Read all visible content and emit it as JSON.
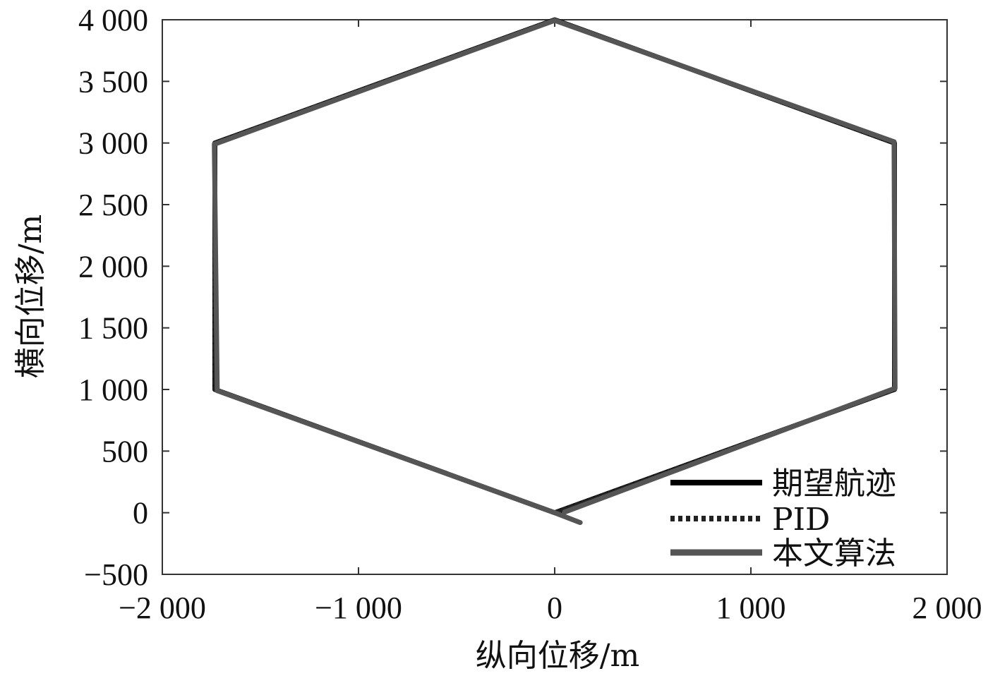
{
  "chart_data": {
    "type": "line",
    "xlabel": "纵向位移/m",
    "ylabel": "横向位移/m",
    "xlim": [
      -2000,
      2000
    ],
    "ylim": [
      -500,
      4000
    ],
    "xticks": [
      -2000,
      -1000,
      0,
      1000,
      2000
    ],
    "xtick_labels": [
      "−2 000",
      "−1 000",
      "0",
      "1 000",
      "2 000"
    ],
    "yticks": [
      -500,
      0,
      500,
      1000,
      1500,
      2000,
      2500,
      3000,
      3500,
      4000
    ],
    "ytick_labels": [
      "−500",
      "0",
      "500",
      "1 000",
      "1 500",
      "2 000",
      "2 500",
      "3 000",
      "3 500",
      "4 000"
    ],
    "grid": false,
    "legend_position": "bottom-right",
    "series": [
      {
        "name": "期望航迹",
        "style": "solid",
        "color": "#000000",
        "x": [
          0,
          -1732,
          -1732,
          0,
          1732,
          1732,
          0
        ],
        "y": [
          0,
          1000,
          3000,
          4000,
          3000,
          1000,
          0
        ]
      },
      {
        "name": "PID",
        "style": "dotted",
        "color": "#222222",
        "x": [
          0,
          -1732,
          -1732,
          0,
          1732,
          1732,
          0
        ],
        "y": [
          0,
          1000,
          3000,
          4000,
          3000,
          1000,
          0
        ]
      },
      {
        "name": "本文算法",
        "style": "solid-thick",
        "color": "#555555",
        "x": [
          130,
          0,
          -1720,
          -1735,
          0,
          1730,
          1735,
          50
        ],
        "y": [
          -80,
          0,
          990,
          2990,
          3995,
          3010,
          1010,
          5
        ]
      }
    ]
  }
}
